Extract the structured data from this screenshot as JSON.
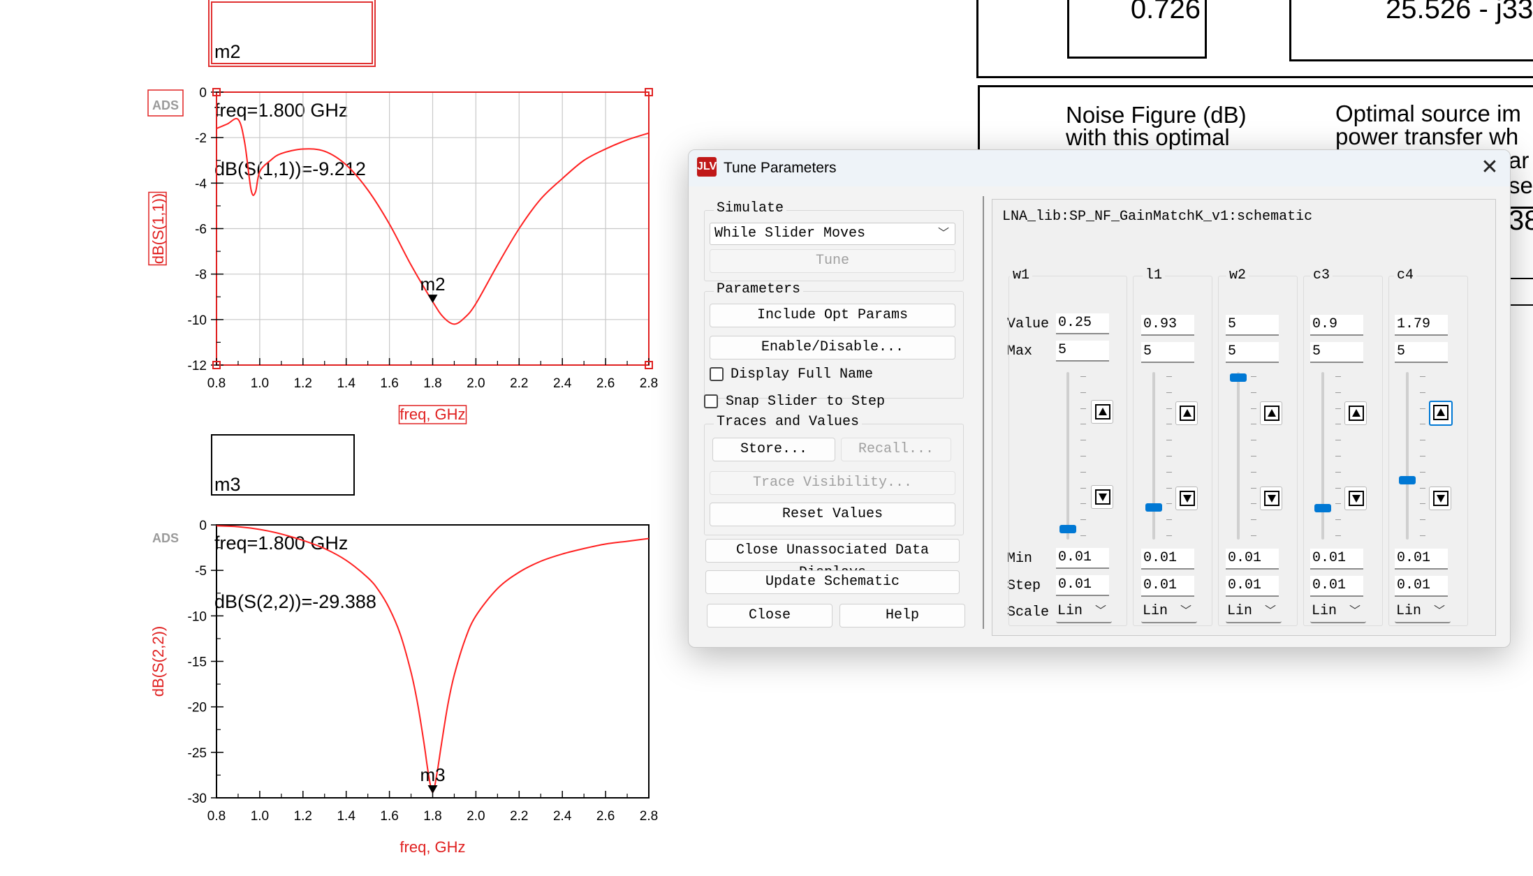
{
  "chart_data": [
    {
      "type": "line",
      "title": "",
      "xlabel": "freq, GHz",
      "ylabel": "dB(S(1,1))",
      "xlim": [
        0.8,
        2.8
      ],
      "ylim": [
        -12,
        0
      ],
      "x_ticks": [
        "0.8",
        "1.0",
        "1.2",
        "1.4",
        "1.6",
        "1.8",
        "2.0",
        "2.2",
        "2.4",
        "2.6",
        "2.8"
      ],
      "y_ticks": [
        "0",
        "-2",
        "-4",
        "-6",
        "-8",
        "-10",
        "-12"
      ],
      "grid": true,
      "series": [
        {
          "name": "",
          "color": "#ff2020",
          "x": [
            0.8,
            0.85,
            0.9,
            0.93,
            0.96,
            0.98,
            1.0,
            1.05,
            1.1,
            1.2,
            1.3,
            1.4,
            1.5,
            1.6,
            1.7,
            1.8,
            1.85,
            1.9,
            1.95,
            2.0,
            2.1,
            2.2,
            2.3,
            2.4,
            2.5,
            2.6,
            2.7,
            2.8
          ],
          "y": [
            -1.6,
            -1.4,
            -1.2,
            -2.2,
            -4.3,
            -4.4,
            -3.5,
            -3.0,
            -2.7,
            -2.5,
            -2.6,
            -3.2,
            -4.3,
            -5.8,
            -7.6,
            -9.212,
            -9.9,
            -10.2,
            -9.9,
            -9.3,
            -7.6,
            -6.0,
            -4.7,
            -3.8,
            -3.0,
            -2.5,
            -2.1,
            -1.8
          ]
        }
      ],
      "marker": {
        "label": "m2",
        "x": 1.8,
        "y": -9.212
      },
      "logo": "ADS"
    },
    {
      "type": "line",
      "title": "",
      "xlabel": "freq, GHz",
      "ylabel": "dB(S(2,2))",
      "xlim": [
        0.8,
        2.8
      ],
      "ylim": [
        -30,
        0
      ],
      "x_ticks": [
        "0.8",
        "1.0",
        "1.2",
        "1.4",
        "1.6",
        "1.8",
        "2.0",
        "2.2",
        "2.4",
        "2.6",
        "2.8"
      ],
      "y_ticks": [
        "0",
        "-5",
        "-10",
        "-15",
        "-20",
        "-25",
        "-30"
      ],
      "grid": false,
      "series": [
        {
          "name": "",
          "color": "#ff2020",
          "x": [
            0.8,
            0.9,
            1.0,
            1.1,
            1.2,
            1.3,
            1.4,
            1.5,
            1.55,
            1.6,
            1.65,
            1.7,
            1.73,
            1.76,
            1.78,
            1.8,
            1.82,
            1.84,
            1.87,
            1.9,
            1.95,
            2.0,
            2.1,
            2.2,
            2.3,
            2.4,
            2.5,
            2.6,
            2.7,
            2.8
          ],
          "y": [
            -0.1,
            -0.2,
            -0.5,
            -1.0,
            -1.7,
            -2.6,
            -3.9,
            -5.8,
            -7.2,
            -9.2,
            -12.0,
            -16.2,
            -19.6,
            -24.0,
            -27.3,
            -29.388,
            -27.3,
            -24.2,
            -19.8,
            -16.5,
            -12.6,
            -10.0,
            -7.0,
            -5.2,
            -4.0,
            -3.2,
            -2.6,
            -2.1,
            -1.8,
            -1.5
          ]
        }
      ],
      "marker": {
        "label": "m3",
        "x": 1.8,
        "y": -29.388
      },
      "logo": "ADS"
    }
  ],
  "marker_boxes": {
    "m2": {
      "line1": "m2",
      "line2": "freq=1.800 GHz",
      "line3": "dB(S(1,1))=-9.212"
    },
    "m3": {
      "line1": "m3",
      "line2": "freq=1.800 GHz",
      "line3": "dB(S(2,2))=-29.388"
    }
  },
  "right_panel": {
    "cell_a": "0.726",
    "cell_b": "25.526 - j33",
    "noise_label_1": "Noise Figure (dB)",
    "noise_label_2": "with this optimal",
    "optimal_label_1": "Optimal source im",
    "optimal_label_2": "power transfer wh",
    "frag_1": "ar",
    "frag_2": "se",
    "frag_3": "38"
  },
  "dialog": {
    "title": "Tune Parameters",
    "app_icon": "JLV",
    "close_icon": "close-icon",
    "schematic_name": "LNA_lib:SP_NF_GainMatchK_v1:schematic",
    "simulate": {
      "label": "Simulate",
      "mode": "While Slider Moves",
      "tune_button": "Tune"
    },
    "parameters": {
      "label": "Parameters",
      "include_opt": "Include Opt Params",
      "enable_disable": "Enable/Disable...",
      "display_full_name": "Display Full Name",
      "display_full_name_checked": false
    },
    "snap_slider": "Snap Slider to Step",
    "snap_slider_checked": false,
    "traces": {
      "label": "Traces and Values",
      "store": "Store...",
      "recall": "Recall...",
      "trace_visibility": "Trace Visibility...",
      "reset_values": "Reset Values"
    },
    "close_unassociated": "Close Unassociated Data Displays",
    "update_schematic": "Update Schematic",
    "close_button": "Close",
    "help_button": "Help",
    "row_labels": {
      "value": "Value",
      "max": "Max",
      "min": "Min",
      "step": "Step",
      "scale": "Scale"
    },
    "params": [
      {
        "name": "w1",
        "value": "0.25",
        "max": "5",
        "min": "0.01",
        "step": "0.01",
        "scale": "Lin",
        "level": 0.048
      },
      {
        "name": "l1",
        "value": "0.93",
        "max": "5",
        "min": "0.01",
        "step": "0.01",
        "scale": "Lin",
        "level": 0.184
      },
      {
        "name": "w2",
        "value": "5",
        "max": "5",
        "min": "0.01",
        "step": "0.01",
        "scale": "Lin",
        "level": 1.0
      },
      {
        "name": "c3",
        "value": "0.9",
        "max": "5",
        "min": "0.01",
        "step": "0.01",
        "scale": "Lin",
        "level": 0.178
      },
      {
        "name": "c4",
        "value": "1.79",
        "max": "5",
        "min": "0.01",
        "step": "0.01",
        "scale": "Lin",
        "level": 0.357
      }
    ]
  }
}
